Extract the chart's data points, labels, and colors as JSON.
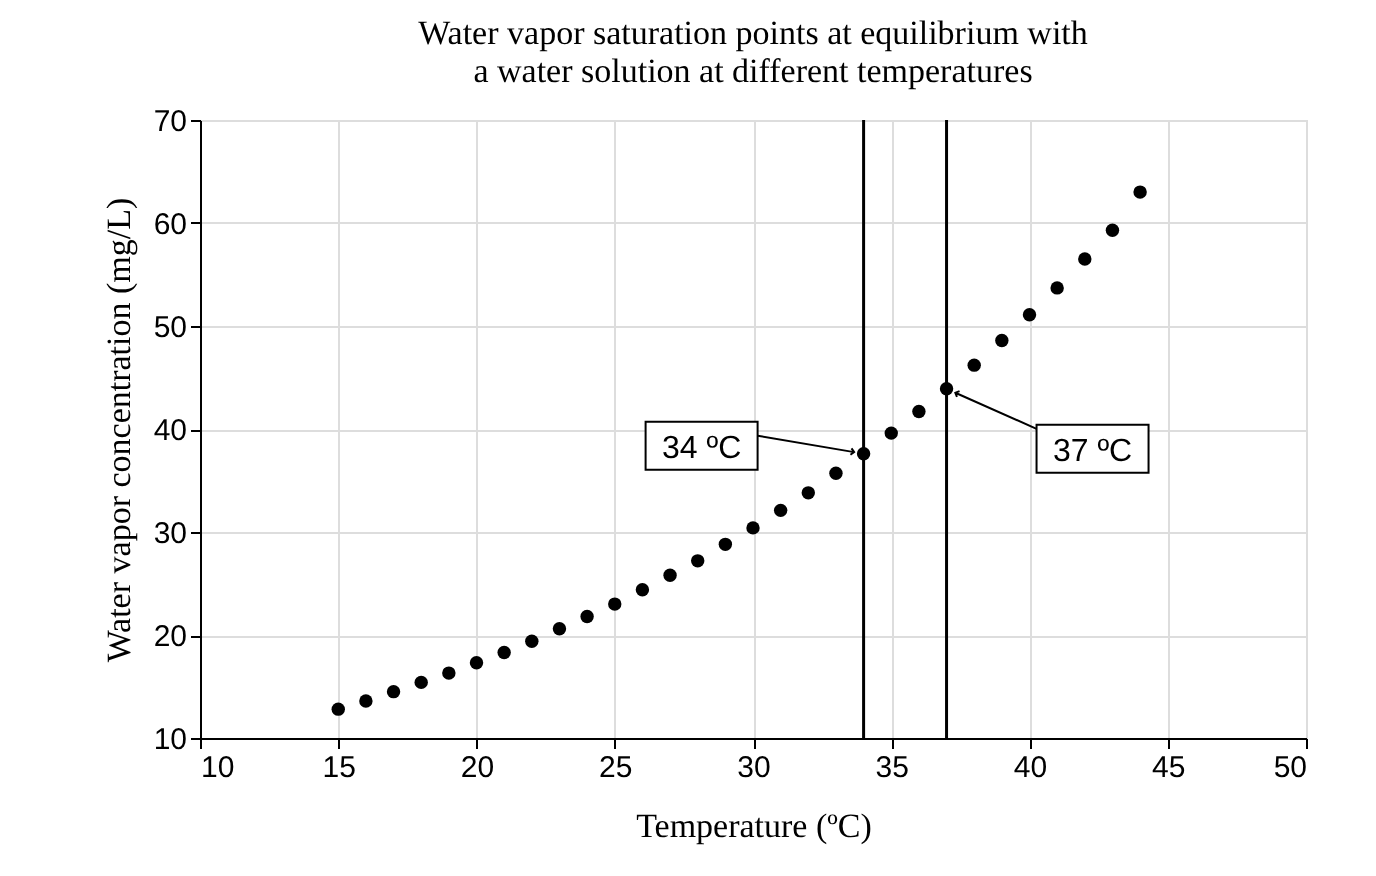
{
  "chart_data": {
    "type": "scatter",
    "title": "Water vapor saturation points at equilibrium with\na water solution at different temperatures",
    "xlabel": "Temperature (ºC)",
    "ylabel": "Water vapor concentration (mg/L)",
    "x": [
      15,
      16,
      17,
      18,
      19,
      20,
      21,
      22,
      23,
      24,
      25,
      26,
      27,
      28,
      29,
      30,
      31,
      32,
      33,
      34,
      35,
      36,
      37,
      38,
      39,
      40,
      41,
      42,
      43,
      44
    ],
    "series": [
      {
        "color": "#000000",
        "values": [
          12.8,
          13.6,
          14.5,
          15.4,
          16.3,
          17.3,
          18.3,
          19.4,
          20.6,
          21.8,
          23.0,
          24.4,
          25.8,
          27.2,
          28.8,
          30.4,
          32.1,
          33.8,
          35.7,
          37.6,
          39.6,
          41.7,
          43.9,
          46.2,
          48.6,
          51.1,
          53.7,
          56.5,
          59.3,
          63.0
        ]
      }
    ],
    "xlim": [
      10,
      50
    ],
    "xticks": [
      10,
      15,
      20,
      25,
      30,
      35,
      40,
      45,
      50
    ],
    "ylim": [
      10,
      70
    ],
    "yticks": [
      10,
      20,
      30,
      40,
      50,
      60,
      70
    ],
    "grid": true,
    "marker": "circle",
    "ref_lines": [
      {
        "axis": "x",
        "value": 34,
        "color": "#000000"
      },
      {
        "axis": "x",
        "value": 37,
        "color": "#000000"
      }
    ],
    "annotations": [
      {
        "text": "34 ºC",
        "x": 34,
        "y": 37.6
      },
      {
        "text": "37 ºC",
        "x": 37,
        "y": 43.9
      }
    ]
  }
}
